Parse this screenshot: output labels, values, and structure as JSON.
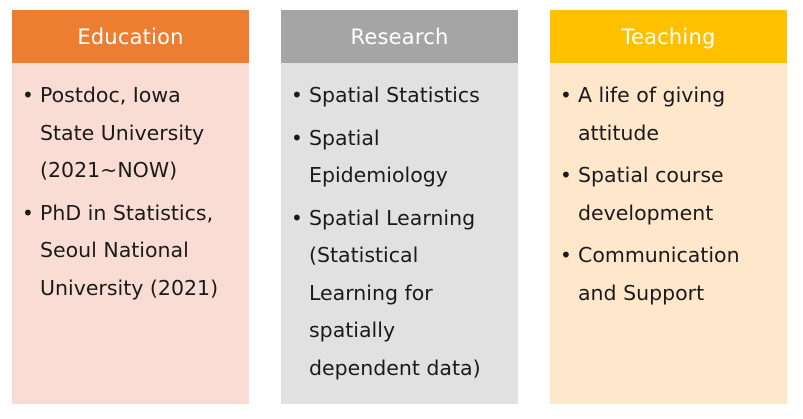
{
  "columns": [
    {
      "title": "Education",
      "colors": {
        "header": "#ed7d31",
        "body": "#f9dcd3"
      },
      "items": [
        "Postdoc, Iowa State University (2021~NOW)",
        "PhD in Statistics, Seoul National University (2021)"
      ]
    },
    {
      "title": "Research",
      "colors": {
        "header": "#a5a5a5",
        "body": "#e1e1e1"
      },
      "items": [
        "Spatial Statistics",
        "Spatial Epidemiology",
        "Spatial Learning (Statistical Learning for spatially dependent data)"
      ]
    },
    {
      "title": "Teaching",
      "colors": {
        "header": "#ffc000",
        "body": "#ffe7cc"
      },
      "items": [
        "A life of giving attitude",
        "Spatial course development",
        "Communication and Support"
      ]
    }
  ]
}
